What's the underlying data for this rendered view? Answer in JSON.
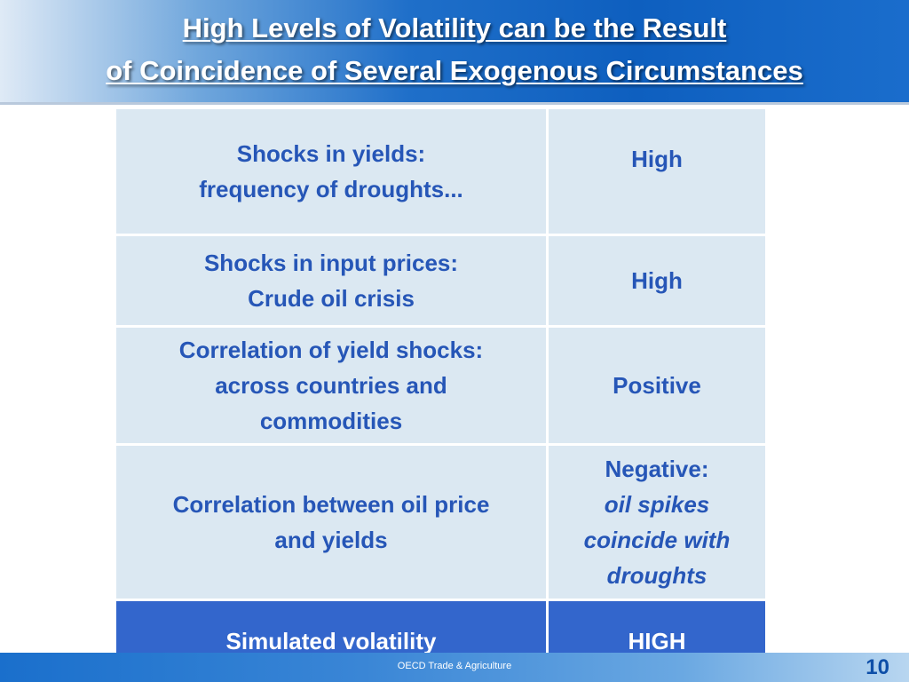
{
  "title": {
    "line1": "High Levels of Volatility can be the Result",
    "line2": "of Coincidence of Several Exogenous Circumstances"
  },
  "table": {
    "rows": [
      {
        "left": [
          "Shocks in yields:",
          "frequency of droughts..."
        ],
        "right": [
          "High"
        ]
      },
      {
        "left": [
          "Shocks in input prices:",
          "Crude oil crisis"
        ],
        "right": [
          "High"
        ]
      },
      {
        "left": [
          "Correlation of yield shocks:",
          "across countries and",
          "commodities"
        ],
        "right": [
          "Positive"
        ]
      },
      {
        "left": [
          "Correlation between oil price",
          "and yields"
        ],
        "right": [
          "Negative:",
          "oil spikes",
          "coincide with",
          "droughts"
        ]
      },
      {
        "left": [
          "Simulated volatility"
        ],
        "right": [
          "HIGH"
        ]
      }
    ]
  },
  "footer": {
    "text": "OECD Trade & Agriculture",
    "page_number": "10"
  }
}
